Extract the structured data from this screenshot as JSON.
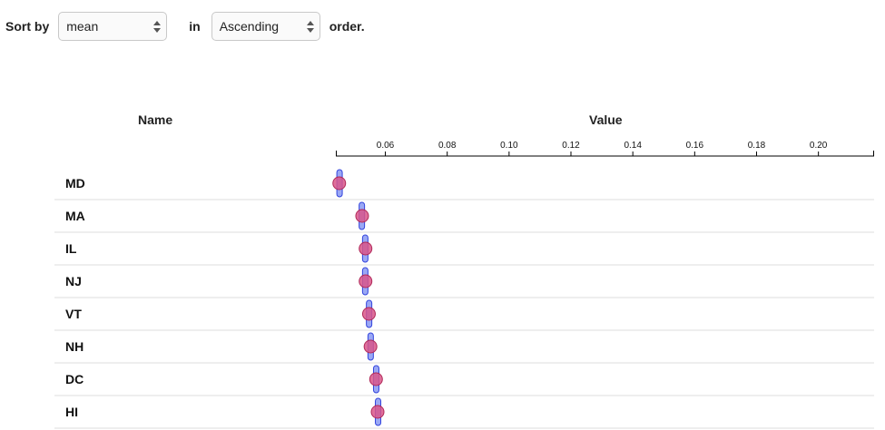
{
  "controls": {
    "sort_label": "Sort by",
    "sort_value": "mean",
    "in_label": "in",
    "order_value": "Ascending",
    "order_label": "order."
  },
  "headers": {
    "name": "Name",
    "value": "Value"
  },
  "colors": {
    "interval_fill": "#9aa8f5",
    "interval_stroke": "#3344dd",
    "point_fill": "#d9568a",
    "point_stroke": "#b02858"
  },
  "chart_data": {
    "type": "scatter",
    "title": "",
    "xlabel": "Value",
    "ylabel": "Name",
    "xlim": [
      0.044,
      0.218
    ],
    "x_ticks": [
      0.06,
      0.08,
      0.1,
      0.12,
      0.14,
      0.16,
      0.18,
      0.2
    ],
    "x_tick_labels": [
      "0.06",
      "0.08",
      "0.10",
      "0.12",
      "0.14",
      "0.16",
      "0.18",
      "0.20"
    ],
    "categories": [
      "MD",
      "MA",
      "IL",
      "NJ",
      "VT",
      "NH",
      "DC",
      "HI"
    ],
    "series": [
      {
        "values": [
          0.0451,
          0.0525,
          0.0536,
          0.0536,
          0.0547,
          0.0552,
          0.057,
          0.0575
        ]
      }
    ],
    "intervals": [
      [
        0.0446,
        0.0458
      ],
      [
        0.0518,
        0.053
      ],
      [
        0.0528,
        0.0542
      ],
      [
        0.0528,
        0.0542
      ],
      [
        0.054,
        0.0555
      ],
      [
        0.0545,
        0.056
      ],
      [
        0.0563,
        0.0578
      ],
      [
        0.057,
        0.0583
      ]
    ]
  }
}
